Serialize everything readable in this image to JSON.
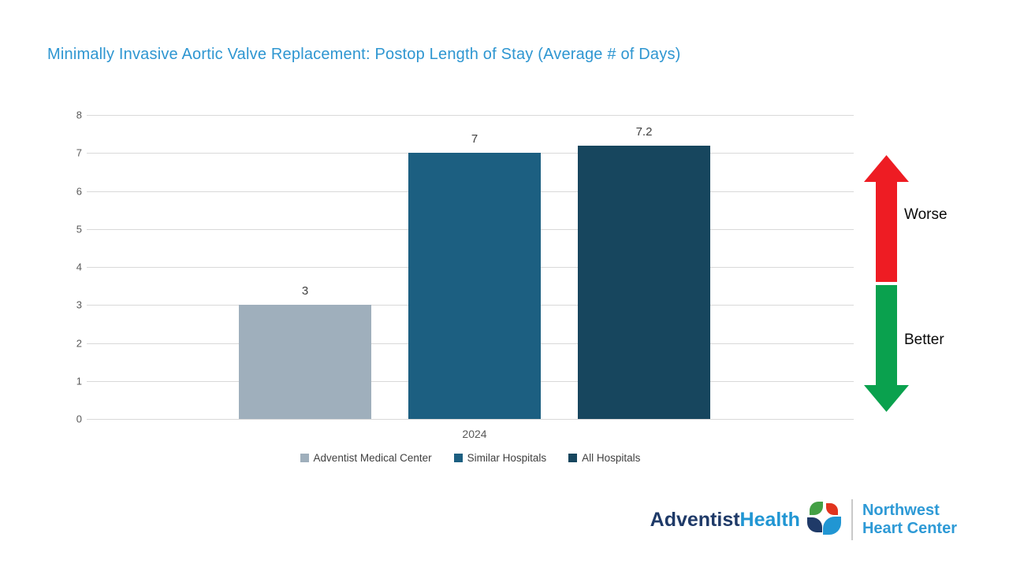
{
  "title": "Minimally Invasive Aortic Valve Replacement: Postop Length of Stay (Average # of Days)",
  "title_color": "#2E96D1",
  "chart_data": {
    "type": "bar",
    "title": "Minimally Invasive Aortic Valve Replacement: Postop Length of Stay (Average # of Days)",
    "categories": [
      "2024"
    ],
    "series": [
      {
        "name": "Adventist Medical Center",
        "values": [
          3
        ],
        "label": "3",
        "color": "#9FAFBC"
      },
      {
        "name": "Similar Hospitals",
        "values": [
          7
        ],
        "label": "7",
        "color": "#1C5F81"
      },
      {
        "name": "All Hospitals",
        "values": [
          7.2
        ],
        "label": "7.2",
        "color": "#17465E"
      }
    ],
    "xlabel": "",
    "ylabel": "",
    "ylim": [
      0,
      8
    ],
    "yticks": [
      0,
      1,
      2,
      3,
      4,
      5,
      6,
      7,
      8
    ],
    "grid": true,
    "gridline_color": "#D9D9D9",
    "legend_position": "bottom"
  },
  "direction_indicator": {
    "worse_label": "Worse",
    "better_label": "Better",
    "worse_color": "#EE1C23",
    "better_color": "#0AA14E"
  },
  "footer": {
    "brand_adventist": "Adventist",
    "brand_health": "Health",
    "brand_adventist_color": "#1F3A68",
    "brand_health_color": "#2196D3",
    "org_line1": "Northwest",
    "org_line2": "Heart Center",
    "org_color": "#2E9AD6",
    "logo_leaf_colors": {
      "green": "#44A045",
      "red": "#E1341E",
      "navy": "#1F3A68",
      "blue": "#2196D3"
    }
  }
}
